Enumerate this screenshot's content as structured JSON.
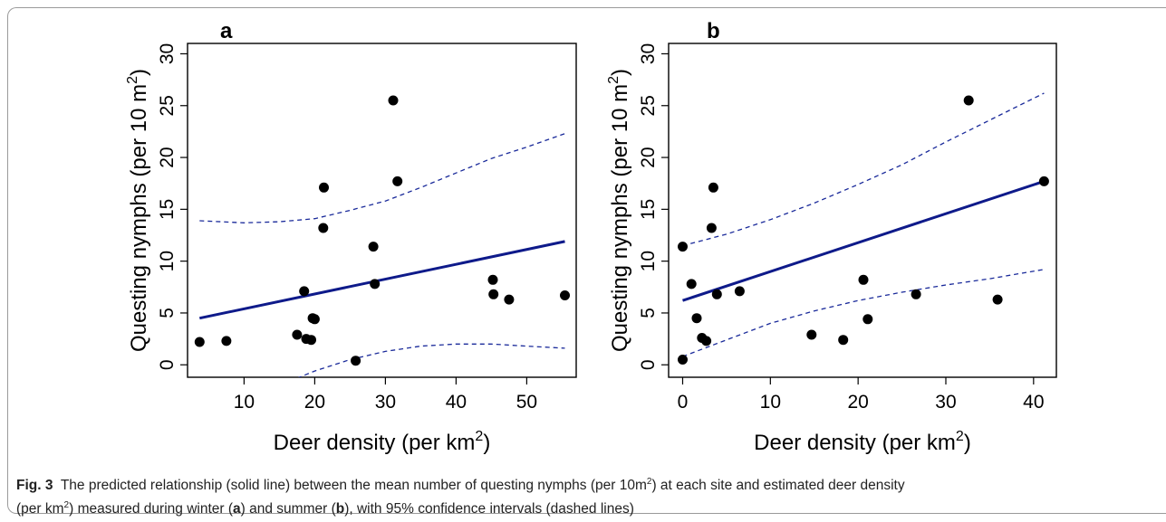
{
  "chart_data": [
    {
      "panel": "a",
      "type": "scatter",
      "xlabel": "Deer density (per km",
      "xlabel_sup": "2",
      "xlabel_end": ")",
      "ylabel": "Questing nymphs (per 10 m",
      "ylabel_sup": "2",
      "ylabel_end": ")",
      "xlim": [
        2,
        57
      ],
      "ylim": [
        -1.2,
        31
      ],
      "xticks": [
        10,
        20,
        30,
        40,
        50
      ],
      "yticks": [
        0,
        5,
        10,
        15,
        20,
        25,
        30
      ],
      "points": [
        [
          3.7,
          2.2
        ],
        [
          7.5,
          2.3
        ],
        [
          17.5,
          2.9
        ],
        [
          18.5,
          7.1
        ],
        [
          18.8,
          2.5
        ],
        [
          19.5,
          2.4
        ],
        [
          19.7,
          4.5
        ],
        [
          20.0,
          4.4
        ],
        [
          21.2,
          13.2
        ],
        [
          21.3,
          17.1
        ],
        [
          25.8,
          0.4
        ],
        [
          28.3,
          11.4
        ],
        [
          28.5,
          7.8
        ],
        [
          31.1,
          25.5
        ],
        [
          31.7,
          17.7
        ],
        [
          45.2,
          8.2
        ],
        [
          45.3,
          6.8
        ],
        [
          47.5,
          6.3
        ],
        [
          55.4,
          6.7
        ]
      ],
      "fit": [
        [
          3.7,
          4.5
        ],
        [
          55.4,
          11.9
        ]
      ],
      "ci_upper": [
        [
          3.7,
          13.9
        ],
        [
          10,
          13.7
        ],
        [
          15,
          13.8
        ],
        [
          20,
          14.1
        ],
        [
          25,
          14.9
        ],
        [
          30,
          15.8
        ],
        [
          35,
          17.1
        ],
        [
          40,
          18.5
        ],
        [
          45,
          19.9
        ],
        [
          50,
          21.0
        ],
        [
          55.4,
          22.3
        ]
      ],
      "ci_lower": [
        [
          17.5,
          -1.3
        ],
        [
          20,
          -0.6
        ],
        [
          25,
          0.5
        ],
        [
          30,
          1.3
        ],
        [
          35,
          1.8
        ],
        [
          40,
          2.0
        ],
        [
          45,
          2.0
        ],
        [
          50,
          1.8
        ],
        [
          55.4,
          1.6
        ]
      ]
    },
    {
      "panel": "b",
      "type": "scatter",
      "xlabel": "Deer density (per km",
      "xlabel_sup": "2",
      "xlabel_end": ")",
      "ylabel": "Questing nymphs (per 10 m",
      "ylabel_sup": "2",
      "ylabel_end": ")",
      "xlim": [
        -1.6,
        42.6
      ],
      "ylim": [
        -1.2,
        31
      ],
      "xticks": [
        0,
        10,
        20,
        30,
        40
      ],
      "yticks": [
        0,
        5,
        10,
        15,
        20,
        25,
        30
      ],
      "points": [
        [
          0.0,
          11.4
        ],
        [
          0.0,
          0.5
        ],
        [
          1.0,
          7.8
        ],
        [
          1.6,
          4.5
        ],
        [
          2.2,
          2.6
        ],
        [
          2.7,
          2.3
        ],
        [
          3.3,
          13.2
        ],
        [
          3.5,
          17.1
        ],
        [
          3.9,
          6.8
        ],
        [
          6.5,
          7.1
        ],
        [
          14.7,
          2.9
        ],
        [
          18.3,
          2.4
        ],
        [
          20.6,
          8.2
        ],
        [
          21.1,
          4.4
        ],
        [
          26.6,
          6.8
        ],
        [
          32.6,
          25.5
        ],
        [
          35.9,
          6.3
        ],
        [
          41.2,
          17.7
        ]
      ],
      "fit": [
        [
          0.0,
          6.2
        ],
        [
          41.2,
          17.7
        ]
      ],
      "ci_upper": [
        [
          0.0,
          11.5
        ],
        [
          5,
          12.6
        ],
        [
          10,
          14.0
        ],
        [
          15,
          15.6
        ],
        [
          20,
          17.4
        ],
        [
          25,
          19.3
        ],
        [
          30,
          21.5
        ],
        [
          35,
          23.6
        ],
        [
          41.2,
          26.2
        ]
      ],
      "ci_lower": [
        [
          0.0,
          0.8
        ],
        [
          5,
          2.4
        ],
        [
          10,
          4.0
        ],
        [
          15,
          5.2
        ],
        [
          20,
          6.2
        ],
        [
          25,
          7.0
        ],
        [
          30,
          7.7
        ],
        [
          35,
          8.3
        ],
        [
          41.2,
          9.2
        ]
      ]
    }
  ],
  "caption": {
    "fig_label": "Fig. 3",
    "text_1": "The predicted relationship (solid line) between the mean number of questing nymphs (per 10m",
    "sup_1": "2",
    "text_2": ") at each site and estimated deer density",
    "text_3": "(per km",
    "sup_2": "2",
    "text_4": ") measured during winter (",
    "panel_a": "a",
    "text_5": ") and summer (",
    "panel_b": "b",
    "text_6": "), with 95% confidence intervals (dashed lines)"
  },
  "colors": {
    "fit_line": "#0e1a8a",
    "ci_line": "#1a2a9a",
    "points": "#000000",
    "frame": "#9a9a9a"
  }
}
